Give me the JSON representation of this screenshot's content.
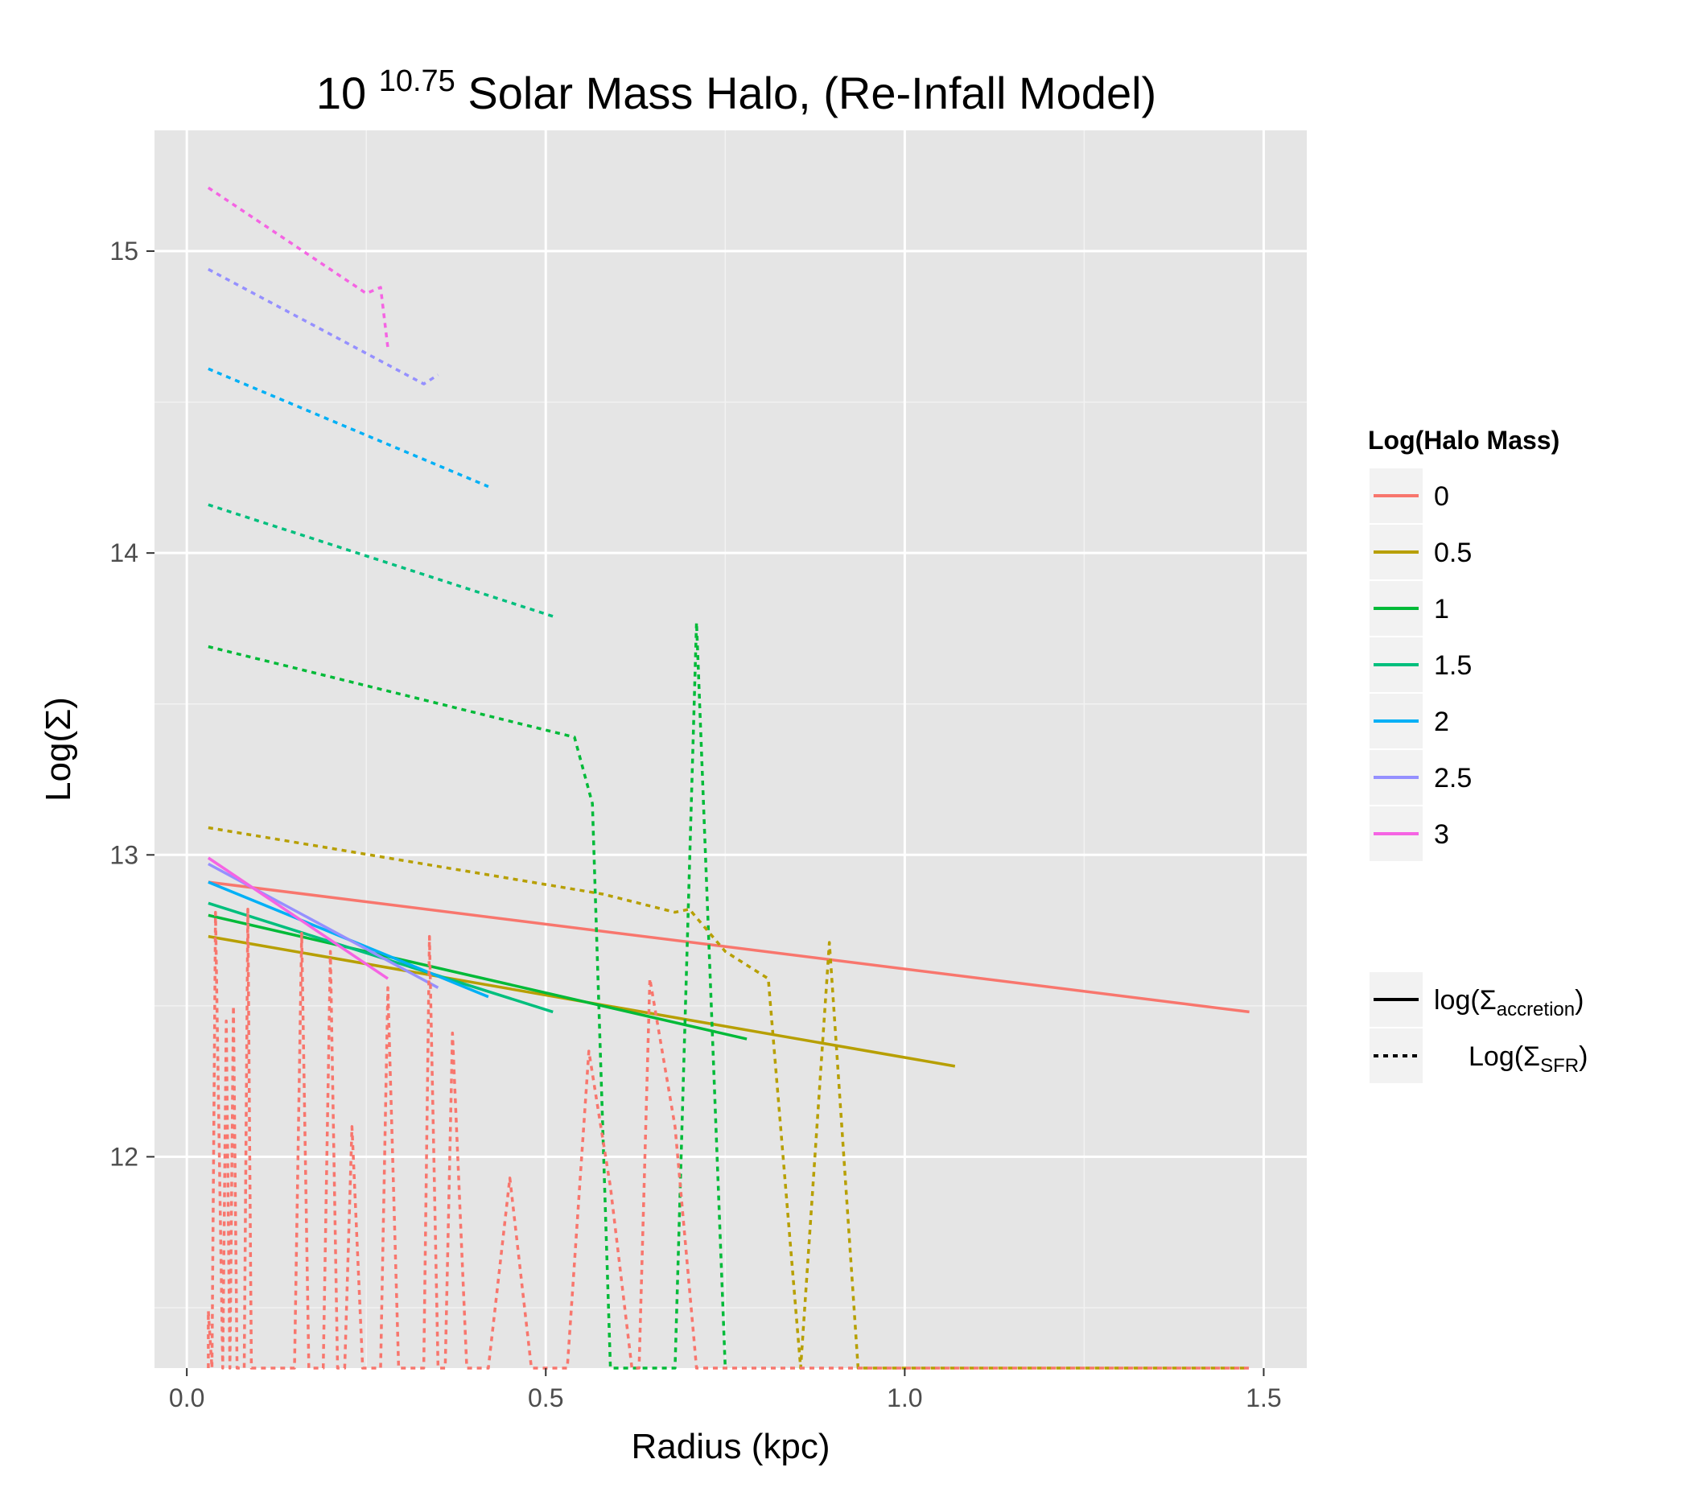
{
  "chart_data": {
    "type": "line",
    "title_prefix": "10",
    "title_exponent": "10.75",
    "title_suffix": "Solar Mass Halo, (Re-Infall Model)",
    "xlabel": "Radius (kpc)",
    "ylabel": "Log(Σ)",
    "xlim": [
      -0.045,
      1.56
    ],
    "ylim": [
      11.3,
      15.4
    ],
    "x_ticks": [
      0.0,
      0.5,
      1.0,
      1.5
    ],
    "x_tick_labels": [
      "0.0",
      "0.5",
      "1.0",
      "1.5"
    ],
    "y_ticks": [
      12,
      13,
      14,
      15
    ],
    "y_tick_labels": [
      "12",
      "13",
      "14",
      "15"
    ],
    "grid": true,
    "legend_position": "right",
    "legend_color_title": "Log(Halo Mass)",
    "legend_color_entries": [
      {
        "label": "0",
        "color": "#F8766D"
      },
      {
        "label": "0.5",
        "color": "#B79F00"
      },
      {
        "label": "1",
        "color": "#00BA38"
      },
      {
        "label": "1.5",
        "color": "#00BF7D"
      },
      {
        "label": "2",
        "color": "#00B0F6"
      },
      {
        "label": "2.5",
        "color": "#9590FF"
      },
      {
        "label": "3",
        "color": "#F564E3"
      }
    ],
    "legend_linetype_entries": [
      {
        "label_base": "log(Σ",
        "label_sub": "accretion",
        "label_end": ")",
        "style": "solid"
      },
      {
        "label_base": "Log(Σ",
        "label_sub": "SFR",
        "label_end": ")",
        "style": "dashed"
      }
    ],
    "series": [
      {
        "group": "0",
        "style": "solid",
        "color": "#F8766D",
        "points": [
          [
            0.03,
            12.91
          ],
          [
            1.48,
            12.48
          ]
        ]
      },
      {
        "group": "0.5",
        "style": "solid",
        "color": "#B79F00",
        "points": [
          [
            0.03,
            12.73
          ],
          [
            1.07,
            12.3
          ]
        ]
      },
      {
        "group": "1",
        "style": "solid",
        "color": "#00BA38",
        "points": [
          [
            0.03,
            12.8
          ],
          [
            0.78,
            12.39
          ]
        ]
      },
      {
        "group": "1.5",
        "style": "solid",
        "color": "#00BF7D",
        "points": [
          [
            0.03,
            12.84
          ],
          [
            0.51,
            12.48
          ]
        ]
      },
      {
        "group": "2",
        "style": "solid",
        "color": "#00B0F6",
        "points": [
          [
            0.03,
            12.91
          ],
          [
            0.42,
            12.53
          ]
        ]
      },
      {
        "group": "2.5",
        "style": "solid",
        "color": "#9590FF",
        "points": [
          [
            0.03,
            12.97
          ],
          [
            0.35,
            12.56
          ]
        ]
      },
      {
        "group": "3",
        "style": "solid",
        "color": "#F564E3",
        "points": [
          [
            0.03,
            12.99
          ],
          [
            0.28,
            12.59
          ]
        ]
      },
      {
        "group": "3",
        "style": "dashed",
        "color": "#F564E3",
        "points": [
          [
            0.03,
            15.21
          ],
          [
            0.25,
            14.86
          ],
          [
            0.27,
            14.88
          ],
          [
            0.28,
            14.68
          ]
        ]
      },
      {
        "group": "2.5",
        "style": "dashed",
        "color": "#9590FF",
        "points": [
          [
            0.03,
            14.94
          ],
          [
            0.33,
            14.56
          ],
          [
            0.35,
            14.59
          ]
        ]
      },
      {
        "group": "2",
        "style": "dashed",
        "color": "#00B0F6",
        "points": [
          [
            0.03,
            14.61
          ],
          [
            0.42,
            14.22
          ]
        ]
      },
      {
        "group": "1.5",
        "style": "dashed",
        "color": "#00BF7D",
        "points": [
          [
            0.03,
            14.16
          ],
          [
            0.51,
            13.79
          ]
        ]
      },
      {
        "group": "1",
        "style": "dashed",
        "color": "#00BA38",
        "points": [
          [
            0.03,
            13.69
          ],
          [
            0.54,
            13.39
          ],
          [
            0.565,
            13.17
          ],
          [
            0.59,
            11.3
          ],
          [
            0.68,
            11.3
          ],
          [
            0.71,
            13.77
          ],
          [
            0.75,
            11.3
          ]
        ]
      },
      {
        "group": "0.5",
        "style": "dashed",
        "color": "#B79F00",
        "points": [
          [
            0.03,
            13.09
          ],
          [
            0.58,
            12.87
          ],
          [
            0.68,
            12.81
          ],
          [
            0.7,
            12.82
          ],
          [
            0.75,
            12.68
          ],
          [
            0.81,
            12.59
          ],
          [
            0.855,
            11.3
          ],
          [
            0.895,
            12.71
          ],
          [
            0.935,
            11.3
          ],
          [
            1.48,
            11.3
          ]
        ]
      },
      {
        "group": "0",
        "style": "dashed",
        "color": "#F8766D",
        "points": [
          [
            0.03,
            11.3
          ],
          [
            0.03,
            11.49
          ],
          [
            0.035,
            11.3
          ],
          [
            0.04,
            12.81
          ],
          [
            0.05,
            11.3
          ],
          [
            0.055,
            12.45
          ],
          [
            0.06,
            11.3
          ],
          [
            0.065,
            12.5
          ],
          [
            0.07,
            11.3
          ],
          [
            0.08,
            11.3
          ],
          [
            0.085,
            12.82
          ],
          [
            0.09,
            11.3
          ],
          [
            0.15,
            11.3
          ],
          [
            0.16,
            12.74
          ],
          [
            0.17,
            11.3
          ],
          [
            0.19,
            11.3
          ],
          [
            0.2,
            12.68
          ],
          [
            0.21,
            11.3
          ],
          [
            0.22,
            11.3
          ],
          [
            0.23,
            12.1
          ],
          [
            0.245,
            11.3
          ],
          [
            0.27,
            11.3
          ],
          [
            0.28,
            12.56
          ],
          [
            0.295,
            11.3
          ],
          [
            0.33,
            11.3
          ],
          [
            0.338,
            12.73
          ],
          [
            0.35,
            11.3
          ],
          [
            0.36,
            11.3
          ],
          [
            0.37,
            12.41
          ],
          [
            0.39,
            11.3
          ],
          [
            0.42,
            11.3
          ],
          [
            0.45,
            11.93
          ],
          [
            0.48,
            11.3
          ],
          [
            0.53,
            11.3
          ],
          [
            0.56,
            12.35
          ],
          [
            0.59,
            11.9
          ],
          [
            0.62,
            11.3
          ],
          [
            0.63,
            11.3
          ],
          [
            0.645,
            12.59
          ],
          [
            0.68,
            12.1
          ],
          [
            0.71,
            11.3
          ],
          [
            1.48,
            11.3
          ]
        ]
      }
    ]
  }
}
